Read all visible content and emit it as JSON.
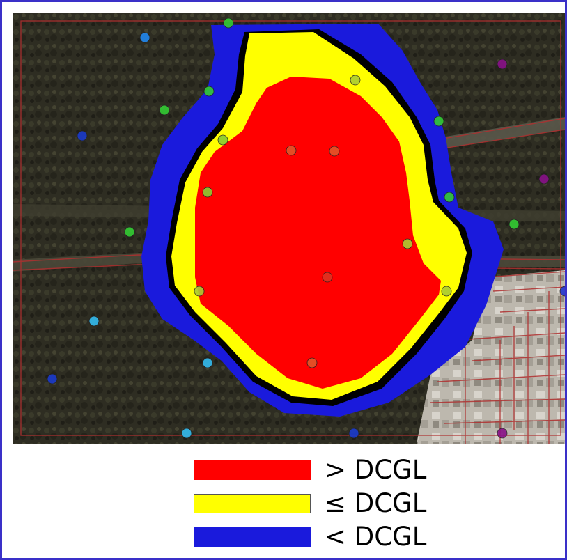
{
  "legend": {
    "items": [
      {
        "label": "> DCGL",
        "color": "#ff0000"
      },
      {
        "label": "≤ DCGL",
        "color": "#ffff00"
      },
      {
        "label": "< DCGL",
        "color": "#1a1adc"
      }
    ]
  },
  "colors": {
    "frame_border": "#3a30c8",
    "contour_line": "#000000",
    "parcel_lines": "#b03030",
    "aerial_dark": "#2b2a20",
    "aerial_light": "#c9c4bb"
  },
  "sample_points": [
    {
      "color": "#33cc33"
    },
    {
      "color": "#2288ee"
    },
    {
      "color": "#33cc33"
    },
    {
      "color": "#33cc33"
    },
    {
      "color": "#1a3acc"
    },
    {
      "color": "#88cc33"
    },
    {
      "color": "#88cc33"
    },
    {
      "color": "#e2562a"
    },
    {
      "color": "#e2562a"
    },
    {
      "color": "#33cc33"
    },
    {
      "color": "#aacc33"
    },
    {
      "color": "#33cc33"
    },
    {
      "color": "#33cc33"
    },
    {
      "color": "#33cc33"
    },
    {
      "color": "#aacc33"
    },
    {
      "color": "#dd3322"
    },
    {
      "color": "#aacc33"
    },
    {
      "color": "#aacc33"
    },
    {
      "color": "#33bbee"
    },
    {
      "color": "#33bbee"
    },
    {
      "color": "#e2562a"
    },
    {
      "color": "#1a3acc"
    },
    {
      "color": "#33bbee"
    },
    {
      "color": "#1a3acc"
    },
    {
      "color": "#881188"
    },
    {
      "color": "#881188"
    },
    {
      "color": "#881188"
    },
    {
      "color": "#2233cc"
    }
  ]
}
